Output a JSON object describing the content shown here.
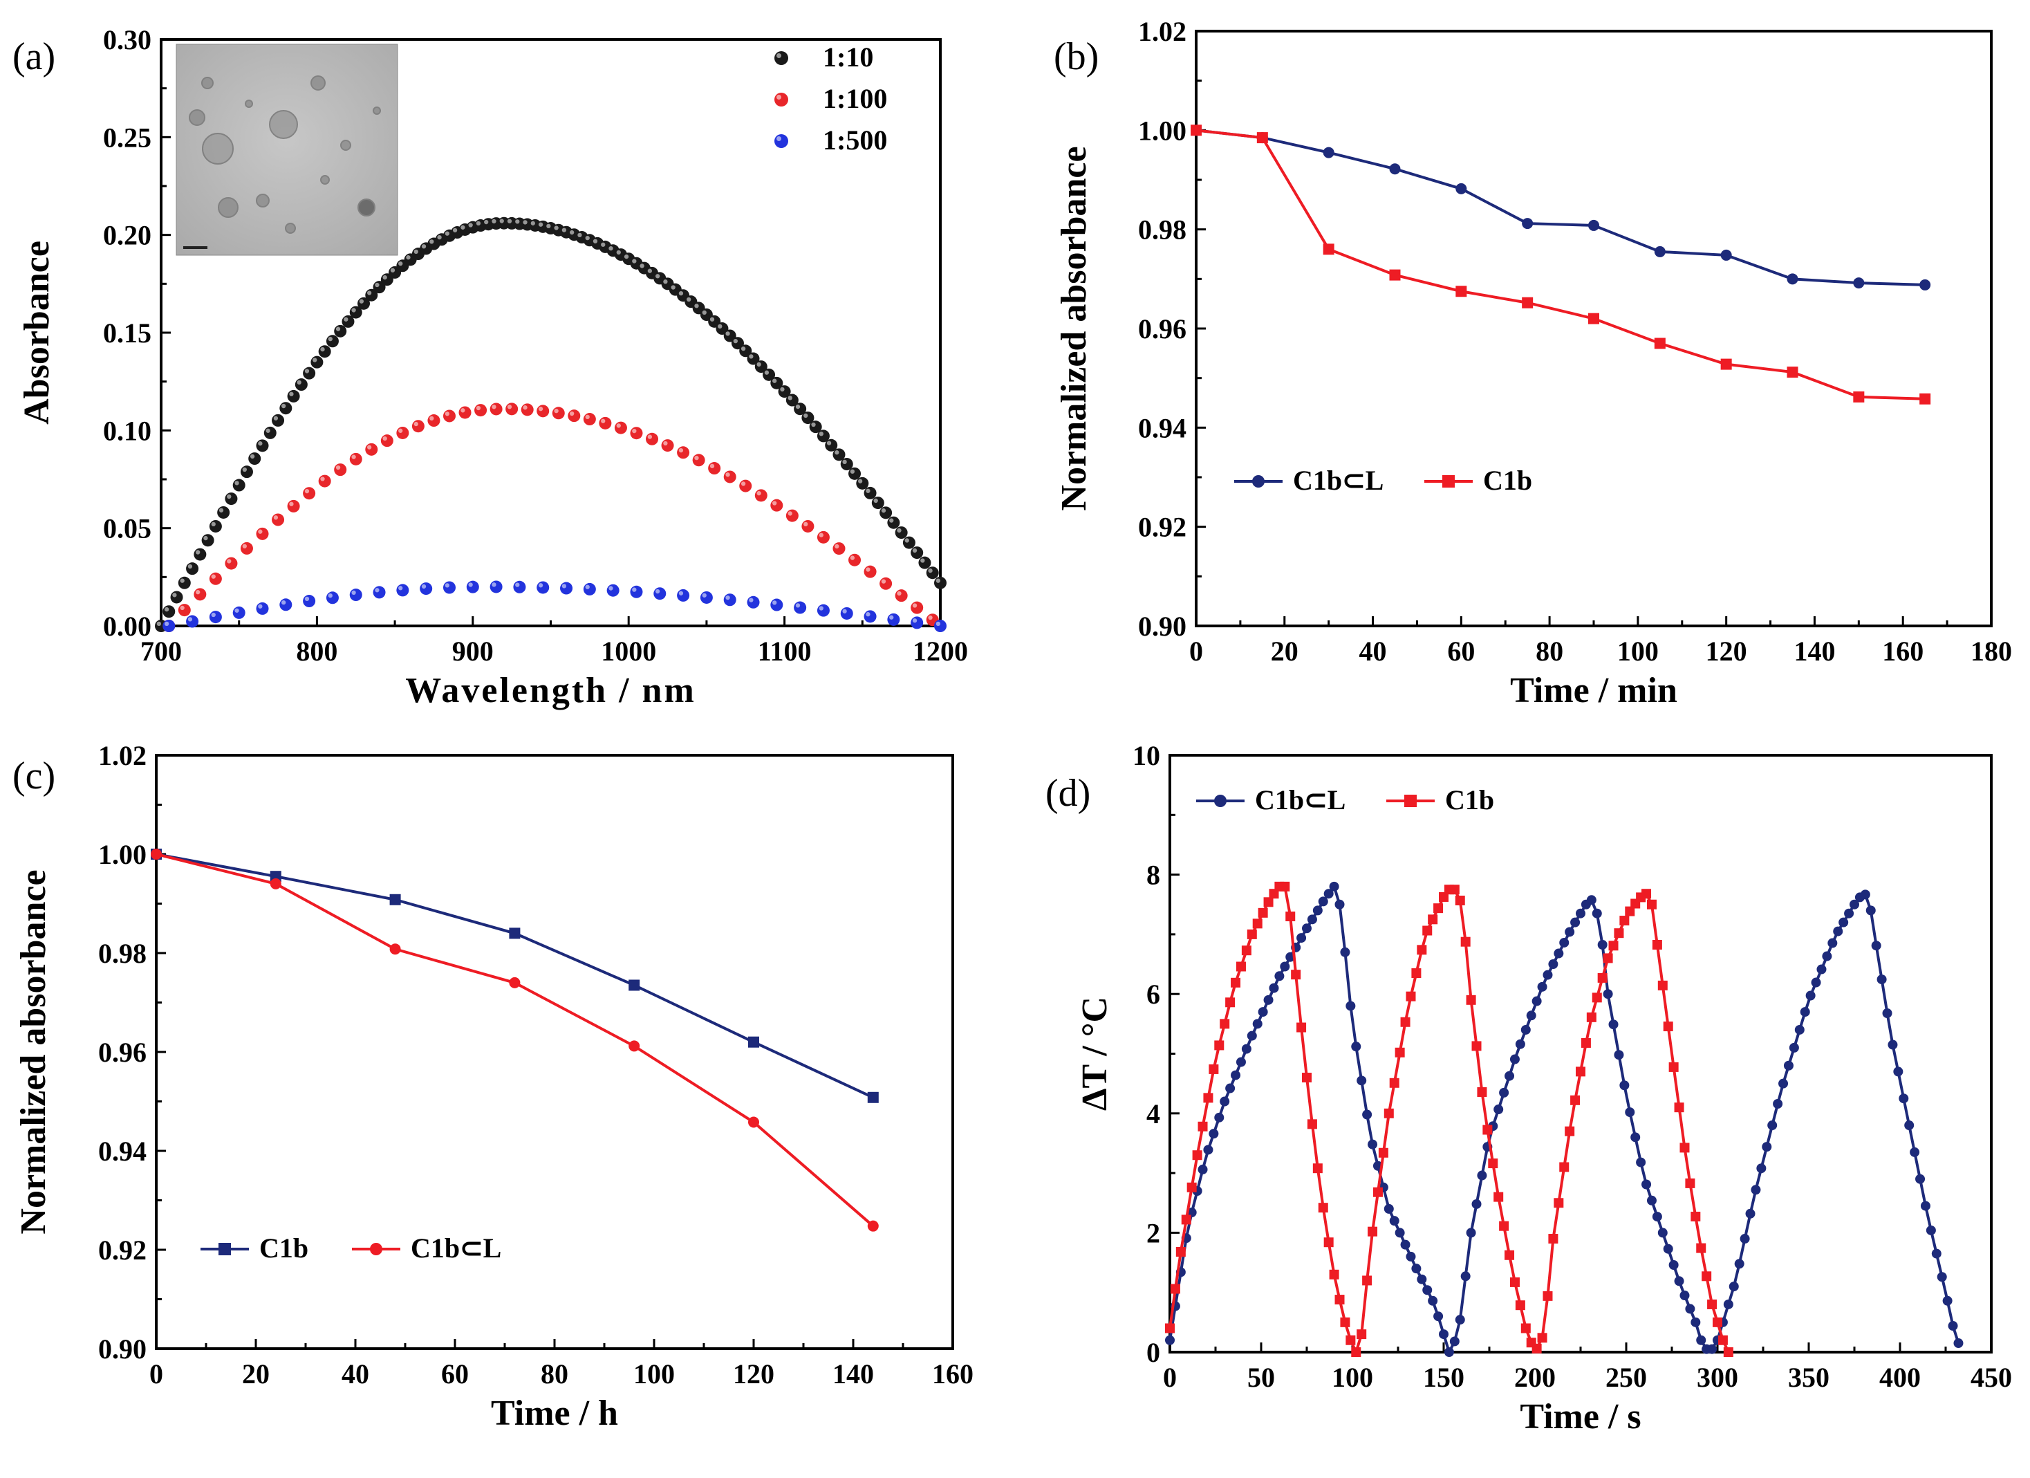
{
  "chart_data": [
    {
      "panel": "(a)",
      "type": "scatter",
      "xlabel": "Wavelength / nm",
      "ylabel": "Absorbance",
      "xlim": [
        700,
        1200
      ],
      "ylim": [
        0.0,
        0.3
      ],
      "xticks": [
        "700",
        "800",
        "900",
        "1000",
        "1100",
        "1200"
      ],
      "yticks": [
        "0.00",
        "0.05",
        "0.10",
        "0.15",
        "0.20",
        "0.25",
        "0.30"
      ],
      "legend_position": "top-right",
      "inset": "TEM image (grayscale micrograph with scale bar)",
      "series": [
        {
          "name": "1:10",
          "color": "#1a1a1a",
          "peak_x": 920,
          "peak_y": 0.206,
          "x_start": 700,
          "x_end": 1200,
          "y_start": 0.0,
          "y_end": 0.022,
          "step": 5
        },
        {
          "name": "1:100",
          "color": "#e8262a",
          "peak_x": 920,
          "peak_y": 0.111,
          "x_start": 705,
          "x_end": 1200,
          "y_start": 0.0,
          "y_end": 0.0,
          "step": 10
        },
        {
          "name": "1:500",
          "color": "#2233dd",
          "peak_x": 910,
          "peak_y": 0.02,
          "x_start": 705,
          "x_end": 1200,
          "y_start": 0.0,
          "y_end": 0.0,
          "step": 15
        }
      ]
    },
    {
      "panel": "(b)",
      "type": "line",
      "xlabel": "Time / min",
      "ylabel": "Normalized absorbance",
      "xlim": [
        0,
        180
      ],
      "ylim": [
        0.9,
        1.02
      ],
      "xticks": [
        "0",
        "20",
        "40",
        "60",
        "80",
        "100",
        "120",
        "140",
        "160",
        "180"
      ],
      "yticks": [
        "0.90",
        "0.92",
        "0.94",
        "0.96",
        "0.98",
        "1.00",
        "1.02"
      ],
      "legend_position": "lower-left",
      "series": [
        {
          "name": "C1b⊂L",
          "color": "#1d2a7a",
          "marker": "circle",
          "x": [
            0,
            15,
            30,
            45,
            60,
            75,
            90,
            105,
            120,
            135,
            150,
            165
          ],
          "y": [
            1.0,
            0.9985,
            0.9955,
            0.9922,
            0.9882,
            0.9812,
            0.9808,
            0.9755,
            0.9748,
            0.97,
            0.9692,
            0.9688
          ]
        },
        {
          "name": "C1b",
          "color": "#ee1c24",
          "marker": "square",
          "x": [
            0,
            15,
            30,
            45,
            60,
            75,
            90,
            105,
            120,
            135,
            150,
            165
          ],
          "y": [
            1.0,
            0.9985,
            0.976,
            0.9708,
            0.9675,
            0.9652,
            0.962,
            0.957,
            0.9528,
            0.9512,
            0.9462,
            0.9458
          ]
        }
      ]
    },
    {
      "panel": "(c)",
      "type": "line",
      "xlabel": "Time / h",
      "ylabel": "Normalized absorbance",
      "xlim": [
        0,
        160
      ],
      "ylim": [
        0.9,
        1.02
      ],
      "xticks": [
        "0",
        "20",
        "40",
        "60",
        "80",
        "100",
        "120",
        "140",
        "160"
      ],
      "yticks": [
        "0.90",
        "0.92",
        "0.94",
        "0.96",
        "0.98",
        "1.00",
        "1.02"
      ],
      "legend_position": "lower-left",
      "series": [
        {
          "name": "C1b",
          "color": "#1d2a7a",
          "marker": "square",
          "x": [
            0,
            24,
            48,
            72,
            96,
            120,
            144
          ],
          "y": [
            1.0,
            0.9955,
            0.9908,
            0.984,
            0.9735,
            0.962,
            0.9508
          ]
        },
        {
          "name": "C1b⊂L",
          "color": "#ee1c24",
          "marker": "circle",
          "x": [
            0,
            24,
            48,
            72,
            96,
            120,
            144
          ],
          "y": [
            1.0,
            0.994,
            0.9808,
            0.974,
            0.9612,
            0.9458,
            0.9248
          ]
        }
      ]
    },
    {
      "panel": "(d)",
      "type": "line",
      "xlabel": "Time / s",
      "ylabel": "ΔT / °C",
      "xlim": [
        0,
        450
      ],
      "ylim": [
        0,
        10
      ],
      "xticks": [
        "0",
        "50",
        "100",
        "150",
        "200",
        "250",
        "300",
        "350",
        "400",
        "450"
      ],
      "yticks": [
        "0",
        "2",
        "4",
        "6",
        "8",
        "10"
      ],
      "legend_position": "top-left",
      "series": [
        {
          "name": "C1b⊂L",
          "color": "#1d2a7a",
          "marker": "circle",
          "step": 3,
          "keypoints": [
            [
              0,
              0.2
            ],
            [
              10,
              2.1
            ],
            [
              20,
              3.3
            ],
            [
              30,
              4.2
            ],
            [
              45,
              5.3
            ],
            [
              60,
              6.3
            ],
            [
              75,
              7.1
            ],
            [
              85,
              7.6
            ],
            [
              90,
              7.8
            ],
            [
              92,
              7.75
            ],
            [
              95,
              7.0
            ],
            [
              100,
              5.5
            ],
            [
              110,
              3.6
            ],
            [
              120,
              2.4
            ],
            [
              135,
              1.4
            ],
            [
              145,
              0.8
            ],
            [
              150,
              0.3
            ],
            [
              153,
              0.0
            ],
            [
              158,
              0.3
            ],
            [
              165,
              2.0
            ],
            [
              175,
              3.6
            ],
            [
              190,
              5.0
            ],
            [
              205,
              6.2
            ],
            [
              220,
              7.1
            ],
            [
              228,
              7.5
            ],
            [
              232,
              7.6
            ],
            [
              236,
              7.1
            ],
            [
              240,
              6.0
            ],
            [
              250,
              4.3
            ],
            [
              260,
              2.9
            ],
            [
              270,
              2.0
            ],
            [
              280,
              1.1
            ],
            [
              288,
              0.5
            ],
            [
              292,
              0.1
            ],
            [
              296,
              0.0
            ],
            [
              300,
              0.2
            ],
            [
              310,
              1.2
            ],
            [
              320,
              2.6
            ],
            [
              335,
              4.4
            ],
            [
              350,
              5.9
            ],
            [
              365,
              7.0
            ],
            [
              375,
              7.5
            ],
            [
              380,
              7.7
            ],
            [
              383,
              7.6
            ],
            [
              386,
              7.0
            ],
            [
              395,
              5.3
            ],
            [
              405,
              3.8
            ],
            [
              415,
              2.3
            ],
            [
              425,
              1.0
            ],
            [
              430,
              0.3
            ],
            [
              434,
              0.0
            ]
          ]
        },
        {
          "name": "C1b",
          "color": "#ee1c24",
          "marker": "square",
          "step": 3,
          "keypoints": [
            [
              0,
              0.4
            ],
            [
              5,
              1.5
            ],
            [
              15,
              3.3
            ],
            [
              25,
              4.9
            ],
            [
              35,
              6.1
            ],
            [
              45,
              7.0
            ],
            [
              55,
              7.6
            ],
            [
              60,
              7.8
            ],
            [
              63,
              7.8
            ],
            [
              66,
              7.3
            ],
            [
              70,
              6.0
            ],
            [
              75,
              4.6
            ],
            [
              80,
              3.3
            ],
            [
              85,
              2.2
            ],
            [
              90,
              1.3
            ],
            [
              95,
              0.6
            ],
            [
              100,
              0.1
            ],
            [
              102,
              0.0
            ],
            [
              105,
              0.3
            ],
            [
              110,
              1.8
            ],
            [
              120,
              4.0
            ],
            [
              130,
              5.7
            ],
            [
              140,
              7.0
            ],
            [
              148,
              7.5
            ],
            [
              152,
              7.75
            ],
            [
              158,
              7.75
            ],
            [
              161,
              7.2
            ],
            [
              165,
              5.9
            ],
            [
              172,
              4.1
            ],
            [
              180,
              2.6
            ],
            [
              188,
              1.3
            ],
            [
              195,
              0.4
            ],
            [
              200,
              0.0
            ],
            [
              205,
              0.3
            ],
            [
              210,
              1.9
            ],
            [
              220,
              3.9
            ],
            [
              230,
              5.5
            ],
            [
              240,
              6.6
            ],
            [
              250,
              7.3
            ],
            [
              257,
              7.6
            ],
            [
              262,
              7.7
            ],
            [
              264,
              7.5
            ],
            [
              268,
              6.6
            ],
            [
              275,
              5.0
            ],
            [
              283,
              3.2
            ],
            [
              290,
              1.9
            ],
            [
              297,
              0.8
            ],
            [
              303,
              0.2
            ],
            [
              306,
              0.0
            ]
          ]
        }
      ]
    }
  ]
}
